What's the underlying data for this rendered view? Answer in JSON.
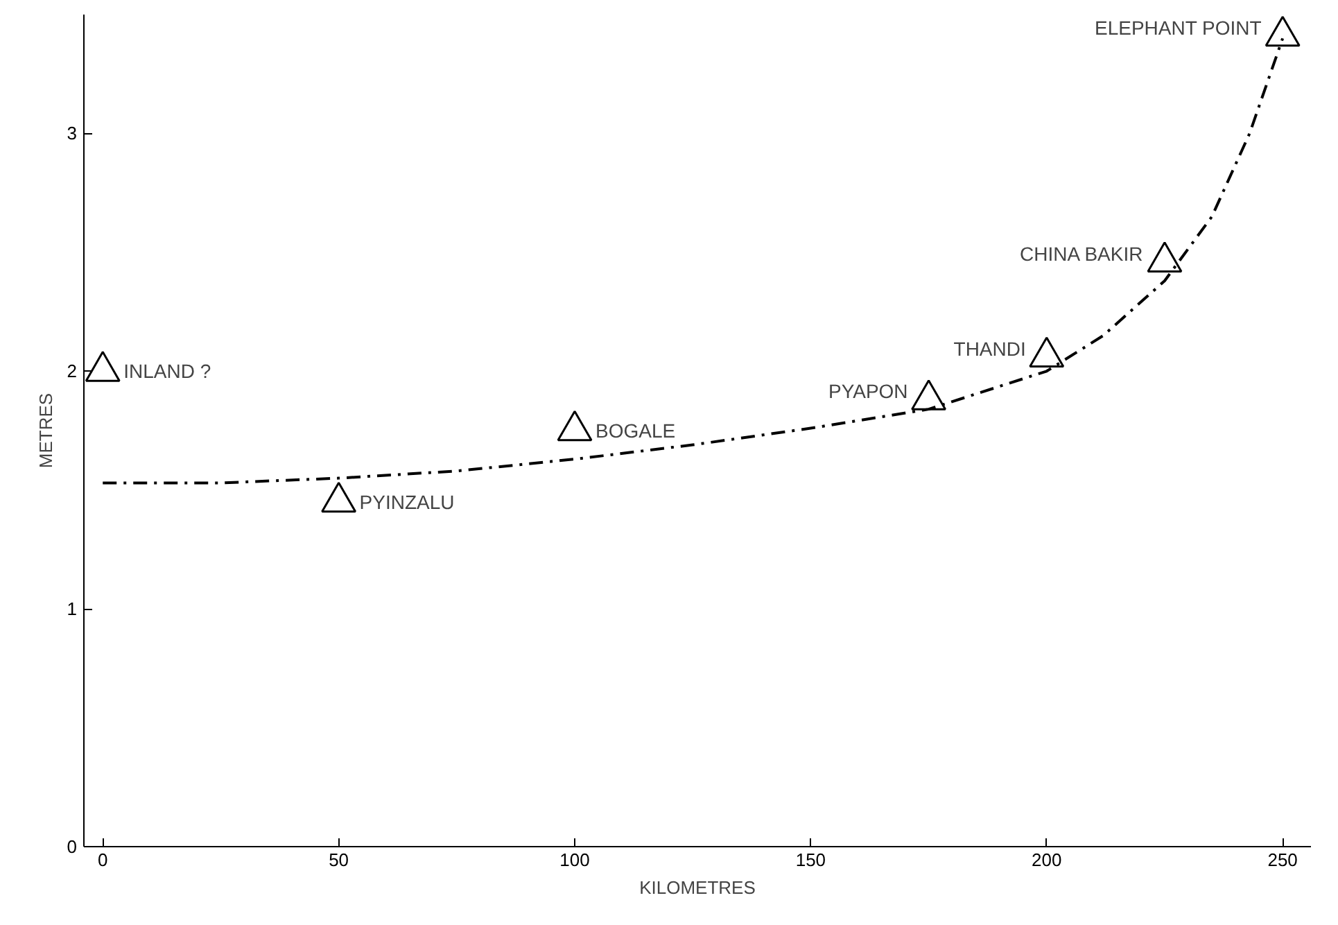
{
  "chart_data": {
    "type": "scatter",
    "xlabel": "KILOMETRES",
    "ylabel": "METRES",
    "xlim": [
      -4,
      256
    ],
    "ylim": [
      0,
      3.5
    ],
    "xticks": [
      0,
      50,
      100,
      150,
      200,
      250
    ],
    "yticks": [
      0,
      1,
      2,
      3
    ],
    "grid": false,
    "series": [
      {
        "marker": "triangle",
        "color": "#000000",
        "x": [
          0,
          50,
          100,
          175,
          200,
          225,
          250
        ],
        "values": [
          2.0,
          1.45,
          1.75,
          1.88,
          2.06,
          2.46,
          3.41
        ]
      },
      {
        "type": "line",
        "marker": "none",
        "line_style": "dashed",
        "color": "#000000",
        "x": [
          0,
          25,
          50,
          75,
          100,
          125,
          150,
          175,
          200,
          212,
          225,
          235,
          243,
          250
        ],
        "values": [
          1.53,
          1.53,
          1.55,
          1.58,
          1.63,
          1.69,
          1.76,
          1.84,
          2.0,
          2.15,
          2.38,
          2.65,
          3.0,
          3.4
        ]
      }
    ],
    "annotations": [
      {
        "text": "INLAND ?",
        "x": 0,
        "y": 2.0
      },
      {
        "text": "PYINZALU",
        "x": 50,
        "y": 1.45
      },
      {
        "text": "BOGALE",
        "x": 100,
        "y": 1.75
      },
      {
        "text": "PYAPON",
        "x": 175,
        "y": 1.88
      },
      {
        "text": "THANDI",
        "x": 200,
        "y": 2.06
      },
      {
        "text": "CHINA BAKIR",
        "x": 225,
        "y": 2.46
      },
      {
        "text": "ELEPHANT POINT",
        "x": 250,
        "y": 3.41
      }
    ]
  }
}
